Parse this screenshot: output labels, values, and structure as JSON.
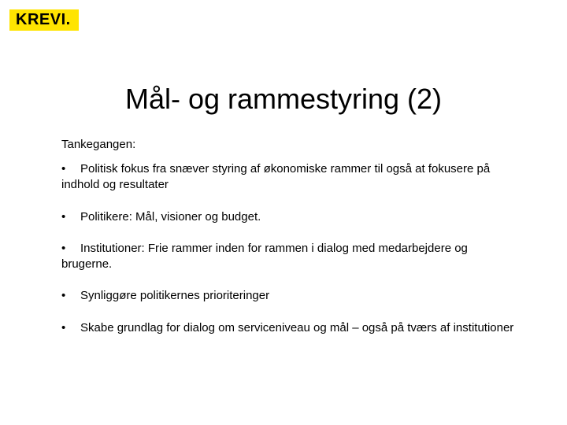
{
  "logo": {
    "text": "KREVI.",
    "background_color": "#ffe400",
    "text_color": "#000000"
  },
  "title": "Mål- og rammestyring (2)",
  "subtitle": "Tankegangen:",
  "bullets": [
    {
      "text": "Politisk fokus fra snæver styring af økonomiske rammer til også at fokusere på indhold og resultater"
    },
    {
      "text": "Politikere: Mål, visioner og budget."
    },
    {
      "text": "Institutioner: Frie rammer inden for rammen i dialog med medarbejdere og brugerne."
    },
    {
      "text": "Synliggøre politikernes prioriteringer"
    },
    {
      "text": "Skabe grundlag for dialog om serviceniveau og mål – også på tværs af institutioner"
    }
  ],
  "styling": {
    "background_color": "#ffffff",
    "title_fontsize": 36,
    "body_fontsize": 15,
    "font_family": "Arial"
  }
}
